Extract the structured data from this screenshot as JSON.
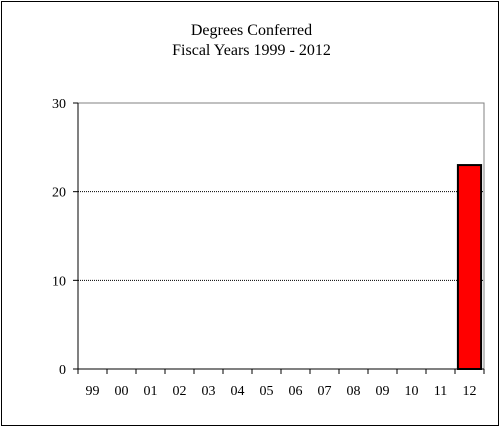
{
  "chart_data": {
    "type": "bar",
    "title": "Degrees Conferred",
    "subtitle": "Fiscal Years 1999 - 2012",
    "xlabel": "",
    "ylabel": "",
    "categories": [
      "99",
      "00",
      "01",
      "02",
      "03",
      "04",
      "05",
      "06",
      "07",
      "08",
      "09",
      "10",
      "11",
      "12"
    ],
    "values": [
      0,
      0,
      0,
      0,
      0,
      0,
      0,
      0,
      0,
      0,
      0,
      0,
      0,
      23
    ],
    "ylim": [
      0,
      30
    ],
    "yticks": [
      0,
      10,
      20,
      30
    ],
    "grid": "horizontal dotted",
    "legend": "none",
    "bar_color": "#ff0000",
    "bar_edge_color": "#000000"
  }
}
